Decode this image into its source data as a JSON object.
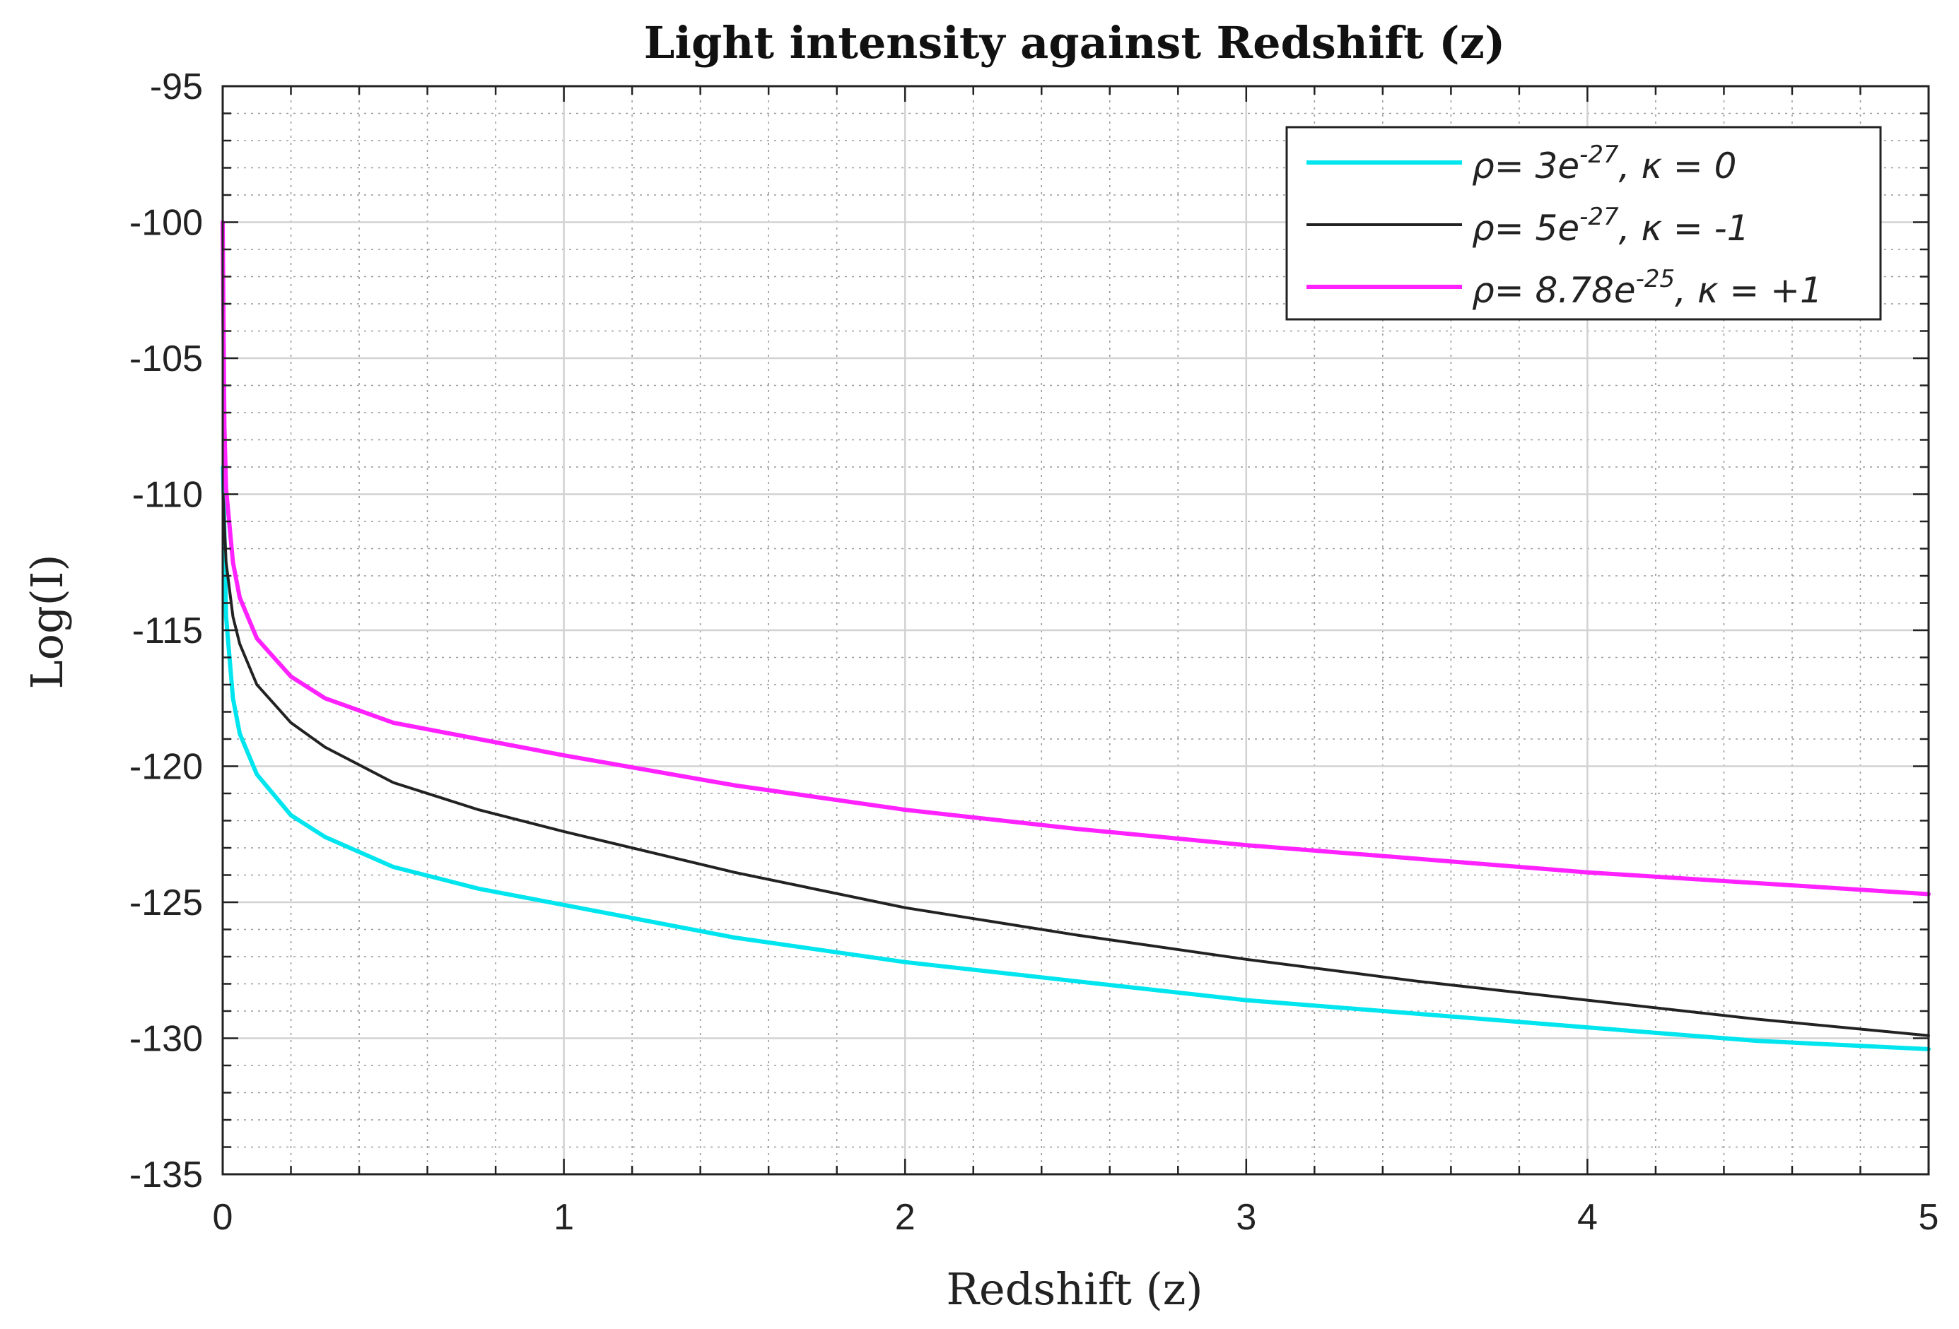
{
  "chart_data": {
    "type": "line",
    "title": "Light intensity against Redshift (z)",
    "xlabel": "Redshift (z)",
    "ylabel": "Log(I)",
    "xlim": [
      0,
      5
    ],
    "ylim": [
      -135,
      -95
    ],
    "xticks": [
      0,
      1,
      2,
      3,
      4,
      5
    ],
    "yticks": [
      -95,
      -100,
      -105,
      -110,
      -115,
      -120,
      -125,
      -130,
      -135
    ],
    "grid": true,
    "minor_grid": true,
    "legend_position": "top-right",
    "series": [
      {
        "name": "ρ= 3e-27, κ = 0",
        "legend": {
          "prefix": "ρ= 3e",
          "exp": "-27",
          "suffix": ", κ = 0"
        },
        "color": "#00e5ee",
        "x": [
          0.001,
          0.01,
          0.03,
          0.05,
          0.1,
          0.2,
          0.3,
          0.5,
          0.75,
          1.0,
          1.5,
          2.0,
          2.5,
          3.0,
          3.5,
          4.0,
          4.5,
          5.0
        ],
        "y": [
          -109,
          -114.5,
          -117.5,
          -118.8,
          -120.3,
          -121.8,
          -122.6,
          -123.7,
          -124.5,
          -125.1,
          -126.3,
          -127.2,
          -127.9,
          -128.6,
          -129.1,
          -129.6,
          -130.1,
          -130.4
        ]
      },
      {
        "name": "ρ= 5e-27, κ = -1",
        "legend": {
          "prefix": "ρ= 5e",
          "exp": "-27",
          "suffix": ", κ = -1"
        },
        "color": "#222222",
        "x": [
          0.001,
          0.01,
          0.03,
          0.05,
          0.1,
          0.2,
          0.3,
          0.5,
          0.75,
          1.0,
          1.5,
          2.0,
          2.5,
          3.0,
          3.5,
          4.0,
          4.5,
          5.0
        ],
        "y": [
          -110,
          -112.5,
          -114.5,
          -115.5,
          -117.0,
          -118.4,
          -119.3,
          -120.6,
          -121.6,
          -122.4,
          -123.9,
          -125.2,
          -126.2,
          -127.1,
          -127.9,
          -128.6,
          -129.3,
          -129.9
        ]
      },
      {
        "name": "ρ= 8.78e-25, κ = +1",
        "legend": {
          "prefix": "ρ= 8.78e",
          "exp": "-25",
          "suffix": ", κ = +1"
        },
        "color": "#ff22ff",
        "x": [
          0.0,
          0.005,
          0.01,
          0.03,
          0.05,
          0.1,
          0.2,
          0.3,
          0.5,
          0.75,
          1.0,
          1.5,
          2.0,
          2.5,
          3.0,
          3.5,
          4.0,
          4.5,
          5.0
        ],
        "y": [
          -100,
          -107.5,
          -109.8,
          -112.5,
          -113.8,
          -115.3,
          -116.7,
          -117.5,
          -118.4,
          -119.0,
          -119.6,
          -120.7,
          -121.6,
          -122.3,
          -122.9,
          -123.4,
          -123.9,
          -124.3,
          -124.7
        ]
      }
    ]
  }
}
